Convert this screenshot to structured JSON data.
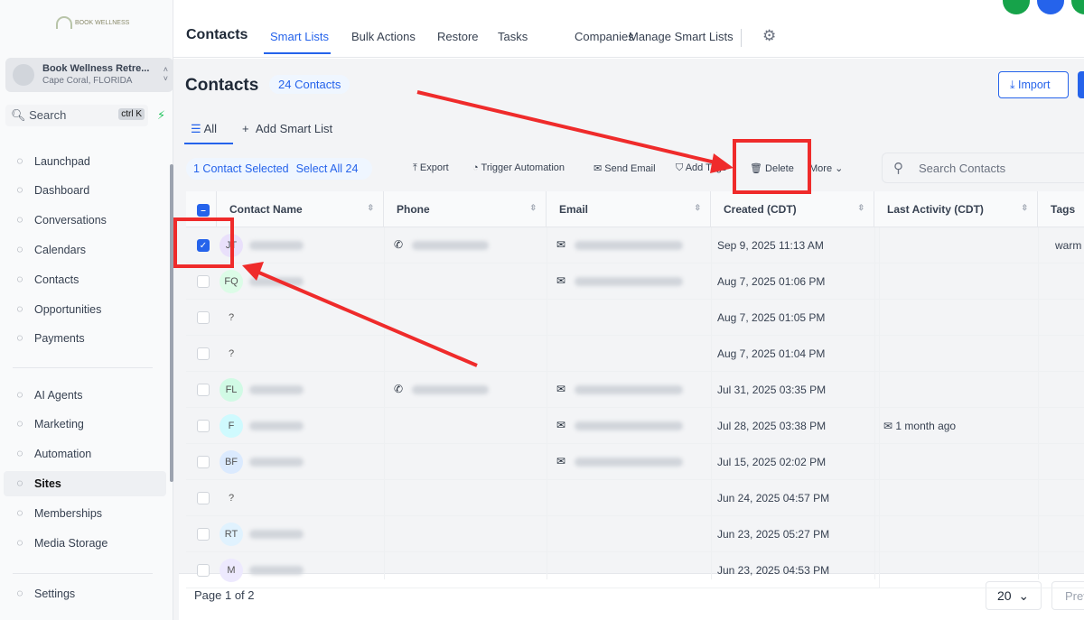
{
  "sidebar": {
    "logo": "BOOK WELLNESS",
    "account": {
      "name": "Book Wellness Retre...",
      "location": "Cape Coral, FLORIDA"
    },
    "search": {
      "placeholder": "Search",
      "shortcut": "ctrl K"
    },
    "items": [
      {
        "label": "Launchpad",
        "icon": "rocket-icon"
      },
      {
        "label": "Dashboard",
        "icon": "grid-icon"
      },
      {
        "label": "Conversations",
        "icon": "chat-icon"
      },
      {
        "label": "Calendars",
        "icon": "calendar-icon"
      },
      {
        "label": "Contacts",
        "icon": "contacts-icon"
      },
      {
        "label": "Opportunities",
        "icon": "pipeline-icon"
      },
      {
        "label": "Payments",
        "icon": "payments-icon"
      },
      {
        "label": "AI Agents",
        "icon": "sparkle-icon"
      },
      {
        "label": "Marketing",
        "icon": "send-icon"
      },
      {
        "label": "Automation",
        "icon": "automation-icon"
      },
      {
        "label": "Sites",
        "icon": "sites-icon"
      },
      {
        "label": "Memberships",
        "icon": "award-icon"
      },
      {
        "label": "Media Storage",
        "icon": "image-icon"
      },
      {
        "label": "Settings",
        "icon": "gear-icon"
      }
    ],
    "active": "Sites"
  },
  "topnav": {
    "title": "Contacts",
    "tabs": [
      "Smart Lists",
      "Bulk Actions",
      "Restore",
      "Tasks",
      "Companies",
      "Manage Smart Lists"
    ],
    "active_tab": "Smart Lists"
  },
  "page": {
    "title": "Contacts",
    "count_badge": "24 Contacts",
    "import_label": "Import",
    "subtabs": {
      "all": "All",
      "add": "Add Smart List"
    },
    "selection": {
      "selected": "1 Contact Selected",
      "select_all": "Select All 24"
    },
    "actions": [
      "Export",
      "Trigger Automation",
      "Send Email",
      "Add Tags",
      "Delete",
      "More"
    ],
    "search_placeholder": "Search Contacts"
  },
  "table": {
    "columns": [
      "Contact Name",
      "Phone",
      "Email",
      "Created (CDT)",
      "Last Activity (CDT)",
      "Tags"
    ],
    "rows": [
      {
        "initials": "JT",
        "checked": true,
        "phone": true,
        "email": true,
        "created": "Sep 9, 2025 11:13 AM",
        "activity": "",
        "tag": "warm",
        "color": "#e9e0fb"
      },
      {
        "initials": "FQ",
        "checked": false,
        "phone": false,
        "email": true,
        "created": "Aug 7, 2025 01:06 PM",
        "activity": "",
        "tag": "",
        "color": "#dcfce7"
      },
      {
        "initials": "?",
        "checked": false,
        "phone": false,
        "email": false,
        "created": "Aug 7, 2025 01:05 PM",
        "activity": "",
        "tag": "",
        "color": "#f3f4f6"
      },
      {
        "initials": "?",
        "checked": false,
        "phone": false,
        "email": false,
        "created": "Aug 7, 2025 01:04 PM",
        "activity": "",
        "tag": "",
        "color": "#f3f4f6"
      },
      {
        "initials": "FL",
        "checked": false,
        "phone": true,
        "email": true,
        "created": "Jul 31, 2025 03:35 PM",
        "activity": "",
        "tag": "",
        "color": "#d1fae5"
      },
      {
        "initials": "F",
        "checked": false,
        "phone": false,
        "email": true,
        "created": "Jul 28, 2025 03:38 PM",
        "activity": "1 month ago",
        "tag": "",
        "color": "#cffafe"
      },
      {
        "initials": "BF",
        "checked": false,
        "phone": false,
        "email": true,
        "created": "Jul 15, 2025 02:02 PM",
        "activity": "",
        "tag": "",
        "color": "#dbeafe"
      },
      {
        "initials": "?",
        "checked": false,
        "phone": false,
        "email": false,
        "created": "Jun 24, 2025 04:57 PM",
        "activity": "",
        "tag": "",
        "color": "#f3f4f6"
      },
      {
        "initials": "RT",
        "checked": false,
        "phone": false,
        "email": false,
        "created": "Jun 23, 2025 05:27 PM",
        "activity": "",
        "tag": "",
        "color": "#e0f2fe"
      },
      {
        "initials": "M",
        "checked": false,
        "phone": false,
        "email": false,
        "created": "Jun 23, 2025 04:53 PM",
        "activity": "",
        "tag": "",
        "color": "#ede9fe"
      }
    ]
  },
  "footer": {
    "page": "Page 1 of 2",
    "per_page": "20",
    "prev": "Prev"
  },
  "colors": {
    "accent": "#2563eb",
    "annotation": "#ef2b2b"
  }
}
